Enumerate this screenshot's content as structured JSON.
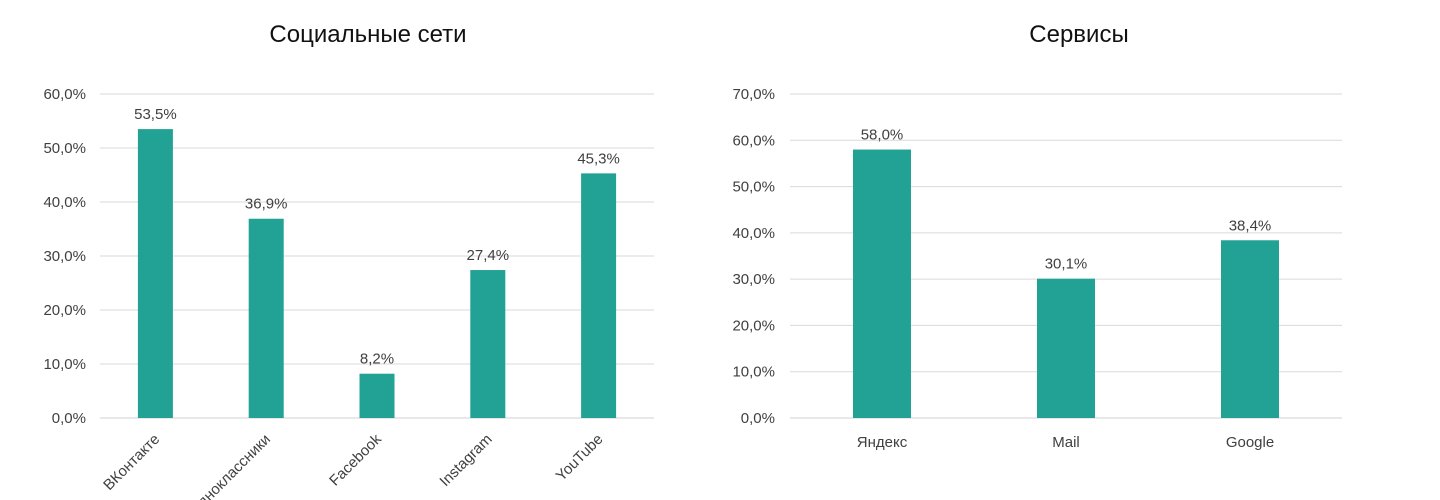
{
  "chart_data": [
    {
      "type": "bar",
      "title": "Социальные сети",
      "categories": [
        "ВКонтакте",
        "Одноклассники",
        "Facebook",
        "Instagram",
        "YouTube"
      ],
      "values": [
        53.5,
        36.9,
        8.2,
        27.4,
        45.3
      ],
      "value_labels": [
        "53,5%",
        "36,9%",
        "8,2%",
        "27,4%",
        "45,3%"
      ],
      "ylim": [
        0,
        60
      ],
      "yticks": [
        0,
        10,
        20,
        30,
        40,
        50,
        60
      ],
      "ytick_labels": [
        "0,0%",
        "10,0%",
        "20,0%",
        "30,0%",
        "40,0%",
        "50,0%",
        "60,0%"
      ],
      "bar_color": "#22a195",
      "grid": true,
      "legend": "none",
      "category_label_rotation": "diagonal"
    },
    {
      "type": "bar",
      "title": "Сервисы",
      "categories": [
        "Яндекс",
        "Mail",
        "Google"
      ],
      "values": [
        58.0,
        30.1,
        38.4
      ],
      "value_labels": [
        "58,0%",
        "30,1%",
        "38,4%"
      ],
      "ylim": [
        0,
        70
      ],
      "yticks": [
        0,
        10,
        20,
        30,
        40,
        50,
        60,
        70
      ],
      "ytick_labels": [
        "0,0%",
        "10,0%",
        "20,0%",
        "30,0%",
        "40,0%",
        "50,0%",
        "60,0%",
        "70,0%"
      ],
      "bar_color": "#22a195",
      "grid": true,
      "legend": "none",
      "category_label_rotation": "horizontal"
    }
  ]
}
